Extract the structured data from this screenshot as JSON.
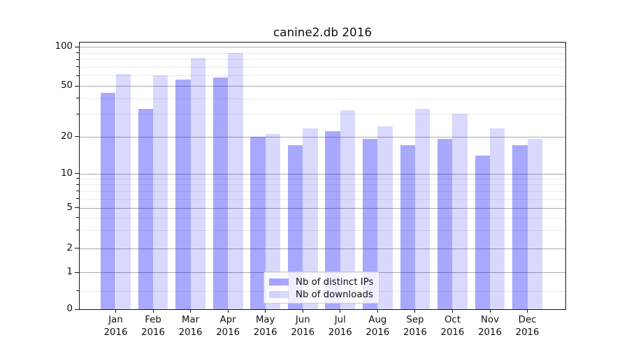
{
  "chart_data": {
    "type": "bar",
    "title": "canine2.db 2016",
    "xlabel": "",
    "ylabel": "",
    "yscale": "symlog",
    "ylim": [
      0,
      110
    ],
    "grid": true,
    "legend_position": "lower center",
    "categories": [
      "Jan",
      "Feb",
      "Mar",
      "Apr",
      "May",
      "Jun",
      "Jul",
      "Aug",
      "Sep",
      "Oct",
      "Nov",
      "Dec"
    ],
    "x_tick_second_line": "2016",
    "y_major_ticks": [
      0,
      1,
      2,
      5,
      10,
      20,
      50,
      100
    ],
    "y_minor_ticks": [
      0.5,
      3,
      4,
      6,
      7,
      8,
      9,
      30,
      40,
      60,
      70,
      80,
      90
    ],
    "series": [
      {
        "name": "Nb of distinct IPs",
        "color": "#a9a9fb",
        "fill": "rgba(0,0,250,0.34)",
        "values": [
          44,
          33,
          56,
          58,
          20,
          17,
          22,
          19,
          17,
          19,
          14,
          17
        ]
      },
      {
        "name": "Nb of downloads",
        "color": "#d9d9fd",
        "fill": "rgba(0,0,250,0.15)",
        "values": [
          62,
          60,
          82,
          89,
          21,
          23,
          32,
          24,
          33,
          30,
          23,
          19
        ]
      }
    ]
  },
  "colors": {
    "background": "#ffffff",
    "spine": "#151515",
    "grid_major": "#ababab",
    "grid_minor": "#e9e9e9",
    "legend_border": "#c9c9c9",
    "text": "#111111"
  }
}
